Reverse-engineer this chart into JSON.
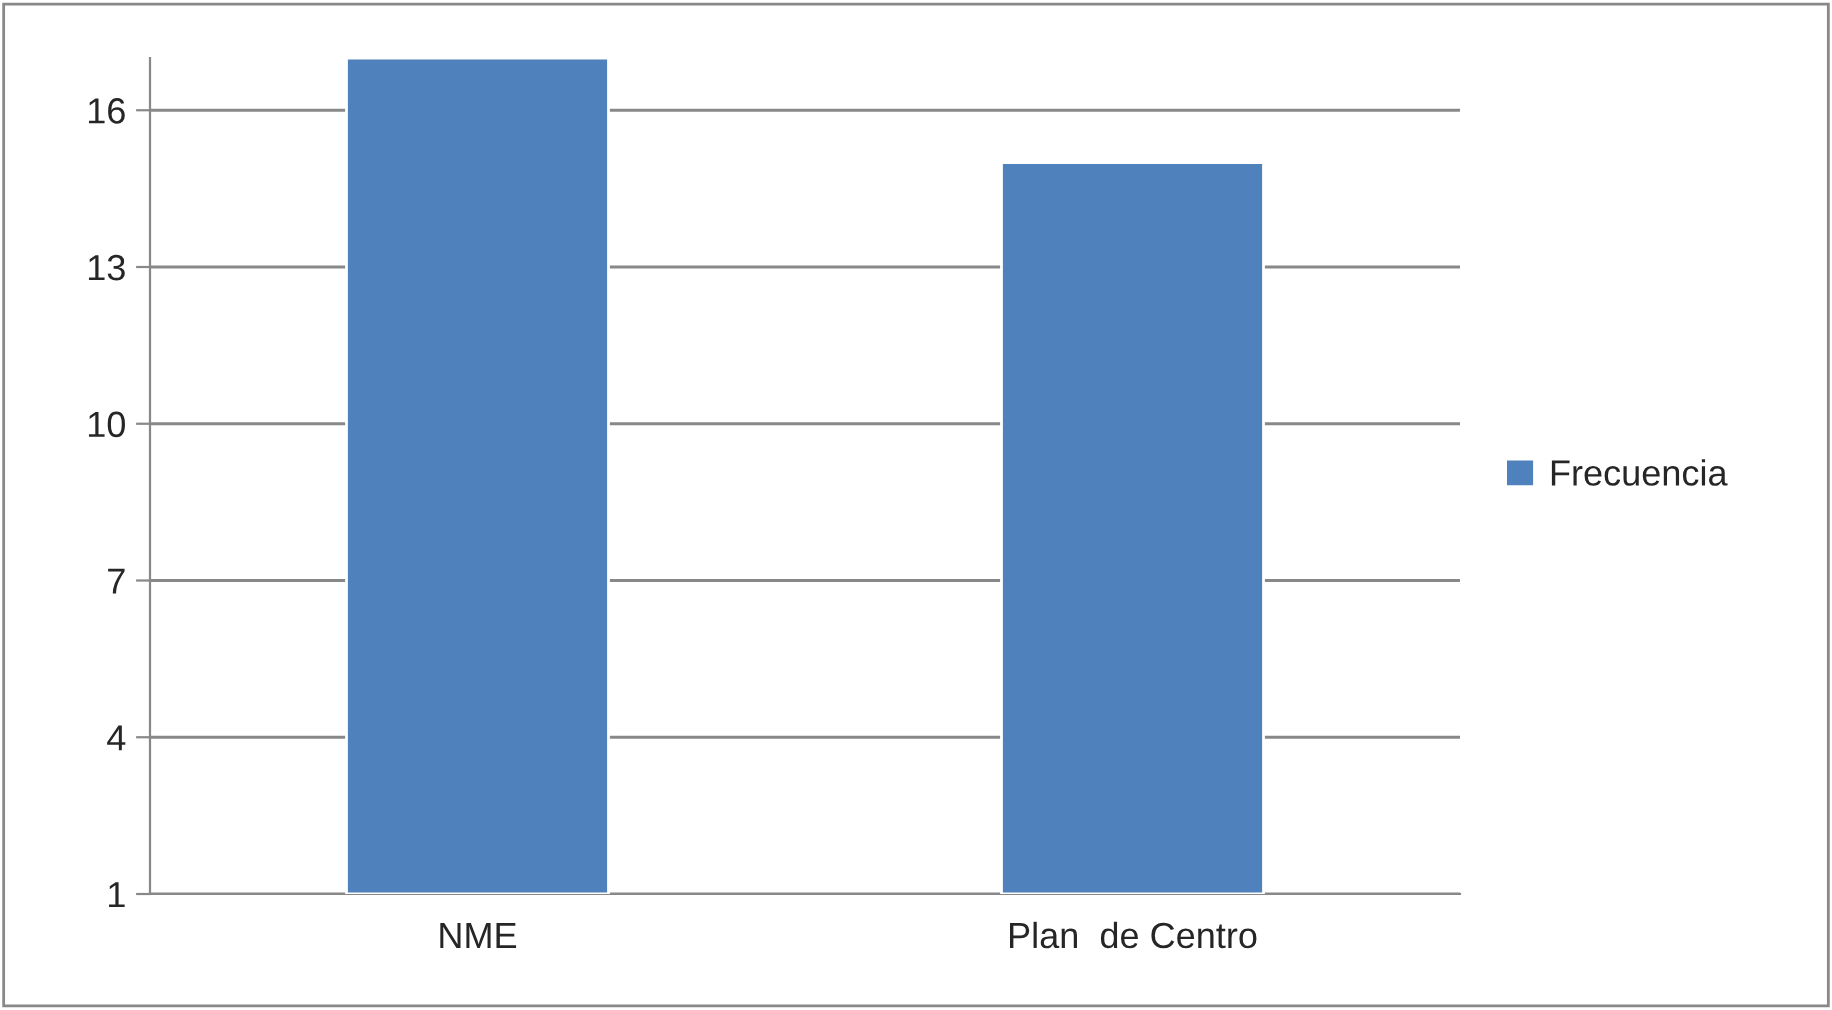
{
  "chart_data": {
    "type": "bar",
    "categories": [
      "NME",
      "Plan  de Centro"
    ],
    "series": [
      {
        "name": "Frecuencia",
        "color": "#4f81bd",
        "values": [
          17,
          15
        ]
      }
    ],
    "ylim": [
      1,
      17
    ],
    "yticks": [
      1,
      4,
      7,
      10,
      13,
      16
    ],
    "grid": "y",
    "legend": "right"
  }
}
